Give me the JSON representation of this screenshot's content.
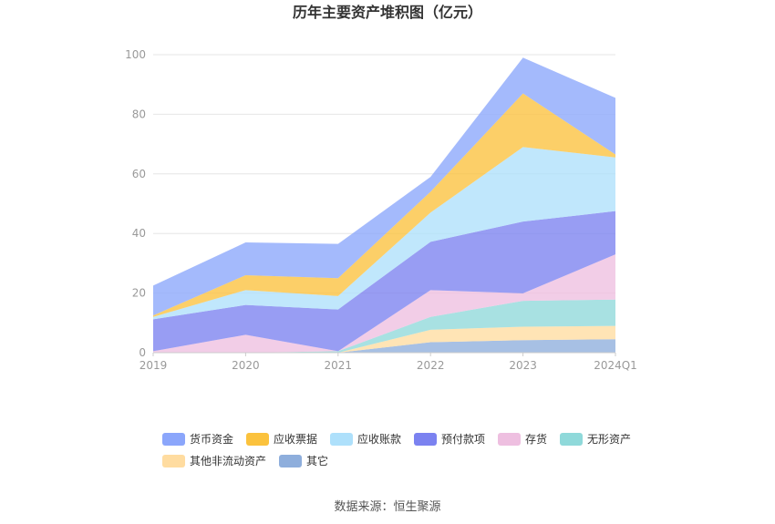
{
  "chart_data": {
    "type": "area",
    "stacked": true,
    "title": "历年主要资产堆积图（亿元）",
    "categories": [
      "2019",
      "2020",
      "2021",
      "2022",
      "2023",
      "2024Q1"
    ],
    "ylim": [
      0,
      100
    ],
    "yticks": [
      0,
      20,
      40,
      60,
      80,
      100
    ],
    "grid": true,
    "legend_position": "bottom",
    "series": [
      {
        "name": "其它",
        "color": "#8eaedc",
        "values": [
          0,
          0,
          0,
          3.5,
          4.2,
          4.5
        ]
      },
      {
        "name": "其他非流动资产",
        "color": "#ffdca0",
        "values": [
          0,
          0,
          0,
          4.2,
          4.5,
          4.5
        ]
      },
      {
        "name": "无形资产",
        "color": "#8fd9da",
        "values": [
          0,
          0,
          0.5,
          4.3,
          8.7,
          8.8
        ]
      },
      {
        "name": "存货",
        "color": "#eebfe0",
        "values": [
          0.5,
          6.0,
          0,
          9.0,
          2.5,
          15.2
        ]
      },
      {
        "name": "预付款项",
        "color": "#7b82f0",
        "values": [
          10.7,
          10.0,
          14.0,
          16.2,
          24.1,
          14.5
        ]
      },
      {
        "name": "应收账款",
        "color": "#aee0fb",
        "values": [
          0.8,
          5.0,
          4.5,
          9.8,
          25.0,
          18.0
        ]
      },
      {
        "name": "应收票据",
        "color": "#fbc23d",
        "values": [
          0.5,
          5.0,
          6.0,
          7.0,
          18.0,
          1.0
        ]
      },
      {
        "name": "货币资金",
        "color": "#8ba6fb",
        "values": [
          10.0,
          11.0,
          11.5,
          5.0,
          12.0,
          19.0
        ]
      }
    ]
  },
  "legend": {
    "items": [
      {
        "name": "货币资金",
        "color": "#8ba6fb"
      },
      {
        "name": "应收票据",
        "color": "#fbc23d"
      },
      {
        "name": "应收账款",
        "color": "#aee0fb"
      },
      {
        "name": "预付款项",
        "color": "#7b82f0"
      },
      {
        "name": "存货",
        "color": "#eebfe0"
      },
      {
        "name": "无形资产",
        "color": "#8fd9da"
      },
      {
        "name": "其他非流动资产",
        "color": "#ffdca0"
      },
      {
        "name": "其它",
        "color": "#8eaedc"
      }
    ]
  },
  "source": "数据来源：恒生聚源"
}
